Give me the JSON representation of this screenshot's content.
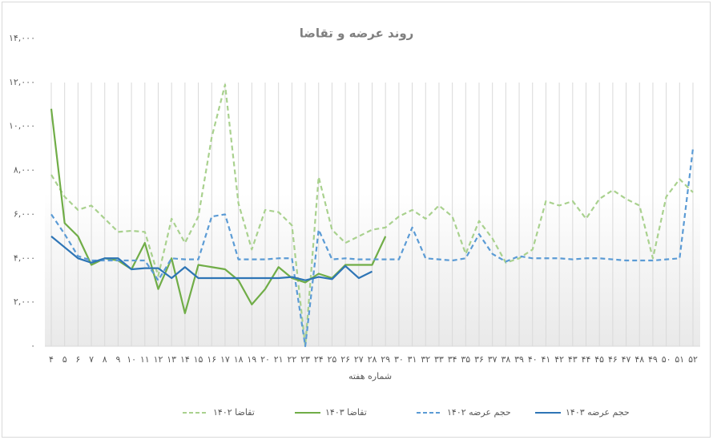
{
  "chart_data": {
    "type": "line",
    "title": "روند عرضه و تقاضا",
    "x_label": "شماره هفته",
    "categories": [
      "۴",
      "۵",
      "۶",
      "۷",
      "۸",
      "۹",
      "۱۰",
      "۱۱",
      "۱۲",
      "۱۳",
      "۱۴",
      "۱۵",
      "۱۶",
      "۱۷",
      "۱۸",
      "۱۹",
      "۲۰",
      "۲۱",
      "۲۲",
      "۲۳",
      "۲۴",
      "۲۵",
      "۲۶",
      "۲۷",
      "۲۸",
      "۲۹",
      "۳۰",
      "۳۱",
      "۳۲",
      "۳۳",
      "۳۴",
      "۳۵",
      "۳۶",
      "۳۷",
      "۳۸",
      "۳۹",
      "۴۰",
      "۴۱",
      "۴۲",
      "۴۳",
      "۴۴",
      "۴۵",
      "۴۶",
      "۴۷",
      "۴۸",
      "۴۹",
      "۵۰",
      "۵۱",
      "۵۲"
    ],
    "series": [
      {
        "name": "تقاضا ۱۴۰۲",
        "color": "#a9d18e",
        "dash": true,
        "values": [
          7800,
          6800,
          6200,
          6400,
          5800,
          5200,
          5250,
          5200,
          3200,
          5800,
          4700,
          5900,
          9500,
          11900,
          6500,
          4400,
          6200,
          6100,
          5500,
          0,
          7700,
          5300,
          4700,
          5000,
          5300,
          5400,
          5900,
          6200,
          5800,
          6400,
          5900,
          4200,
          5700,
          4900,
          3800,
          4000,
          4400,
          6600,
          6400,
          6600,
          5800,
          6700,
          7100,
          6700,
          6400,
          4000,
          6800,
          7600,
          7000
        ]
      },
      {
        "name": "تقاضا ۱۴۰۳",
        "color": "#70ad47",
        "dash": false,
        "values": [
          10800,
          5600,
          5000,
          3700,
          4000,
          3900,
          3500,
          4700,
          2600,
          4000,
          1500,
          3700,
          3600,
          3500,
          3000,
          1900,
          2600,
          3600,
          3100,
          2900,
          3300,
          3100,
          3700,
          3700,
          3700,
          5000,
          null,
          null,
          null,
          null,
          null,
          null,
          null,
          null,
          null,
          null,
          null,
          null,
          null,
          null,
          null,
          null,
          null,
          null,
          null,
          null,
          null,
          null,
          null
        ]
      },
      {
        "name": "حجم عرضه ۱۴۰۲",
        "color": "#5b9bd5",
        "dash": true,
        "values": [
          6000,
          5100,
          4100,
          3900,
          3900,
          3900,
          3900,
          3900,
          3000,
          4000,
          3950,
          3950,
          5900,
          6000,
          3950,
          3950,
          3950,
          4000,
          4000,
          0,
          5300,
          3950,
          4000,
          3950,
          3950,
          3950,
          3950,
          5400,
          4000,
          3950,
          3900,
          4000,
          5100,
          4200,
          3850,
          4100,
          4000,
          4000,
          4000,
          3950,
          4000,
          4000,
          3950,
          3900,
          3900,
          3900,
          3950,
          4000,
          9000
        ]
      },
      {
        "name": "حجم عرضه ۱۴۰۳",
        "color": "#2e75b6",
        "dash": false,
        "values": [
          5000,
          4500,
          4000,
          3800,
          4000,
          4000,
          3500,
          3550,
          3550,
          3100,
          3600,
          3100,
          3100,
          3100,
          3100,
          3100,
          3100,
          3100,
          3150,
          3000,
          3150,
          3050,
          3650,
          3100,
          3400,
          null,
          null,
          null,
          null,
          null,
          null,
          null,
          null,
          null,
          null,
          null,
          null,
          null,
          null,
          null,
          null,
          null,
          null,
          null,
          null,
          null,
          null,
          null,
          null
        ]
      }
    ],
    "ylim": [
      0,
      14000
    ],
    "yticks": [
      {
        "value": 0,
        "label": "۰"
      },
      {
        "value": 2000,
        "label": "۲,۰۰۰"
      },
      {
        "value": 4000,
        "label": "۴,۰۰۰"
      },
      {
        "value": 6000,
        "label": "۶,۰۰۰"
      },
      {
        "value": 8000,
        "label": "۸,۰۰۰"
      },
      {
        "value": 10000,
        "label": "۱۰,۰۰۰"
      },
      {
        "value": 12000,
        "label": "۱۲,۰۰۰"
      },
      {
        "value": 14000,
        "label": "۱۴,۰۰۰"
      }
    ],
    "grid": "x",
    "legend": "bottom"
  }
}
